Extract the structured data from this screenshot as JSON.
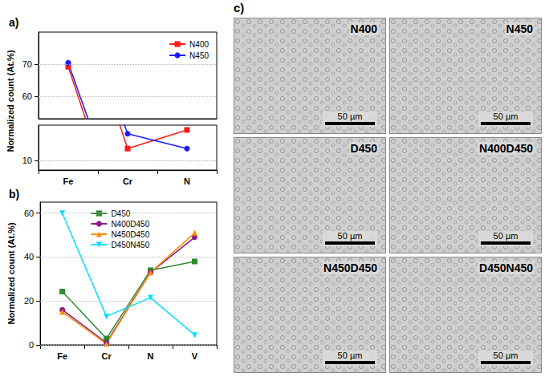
{
  "chart_data": [
    {
      "type": "line",
      "title": "a)",
      "y_label": "Normalized count (At.%)",
      "categories": [
        "Fe",
        "Cr",
        "N"
      ],
      "series": [
        {
          "name": "N400",
          "color": "#ff1a1a",
          "marker": "square",
          "values": [
            69.2,
            13.7,
            19.5
          ]
        },
        {
          "name": "N450",
          "color": "#1a1aff",
          "marker": "circle",
          "values": [
            70.4,
            18.3,
            13.7
          ]
        }
      ],
      "ylim": [
        [
          7,
          21
        ],
        [
          53,
          80
        ]
      ],
      "yticks": [
        [
          10
        ],
        [
          60,
          70
        ]
      ],
      "grid": true,
      "legend": "upper right"
    },
    {
      "type": "line",
      "title": "b)",
      "y_label": "Normalized count (At.%)",
      "categories": [
        "Fe",
        "Cr",
        "N",
        "V"
      ],
      "series": [
        {
          "name": "D450",
          "color": "#2e8b2e",
          "marker": "square",
          "values": [
            24.3,
            2.9,
            34,
            38
          ]
        },
        {
          "name": "N400D450",
          "color": "#8b1a8b",
          "marker": "circle",
          "values": [
            16,
            1,
            33,
            49
          ]
        },
        {
          "name": "N450D450",
          "color": "#ff8c00",
          "marker": "triangle",
          "values": [
            15,
            0.5,
            33,
            51
          ]
        },
        {
          "name": "D450N450",
          "color": "#00e0ff",
          "marker": "triangle_down",
          "values": [
            60,
            13,
            21.5,
            4.5
          ]
        }
      ],
      "ylim": [
        0,
        65
      ],
      "yticks": [
        0,
        20,
        40,
        60
      ],
      "grid": true,
      "legend": "top"
    }
  ],
  "micrographs": {
    "title": "c)",
    "scale_bar": "50 µm",
    "panels": [
      "N400",
      "N450",
      "D450",
      "N400D450",
      "N450D450",
      "D450N450"
    ]
  }
}
